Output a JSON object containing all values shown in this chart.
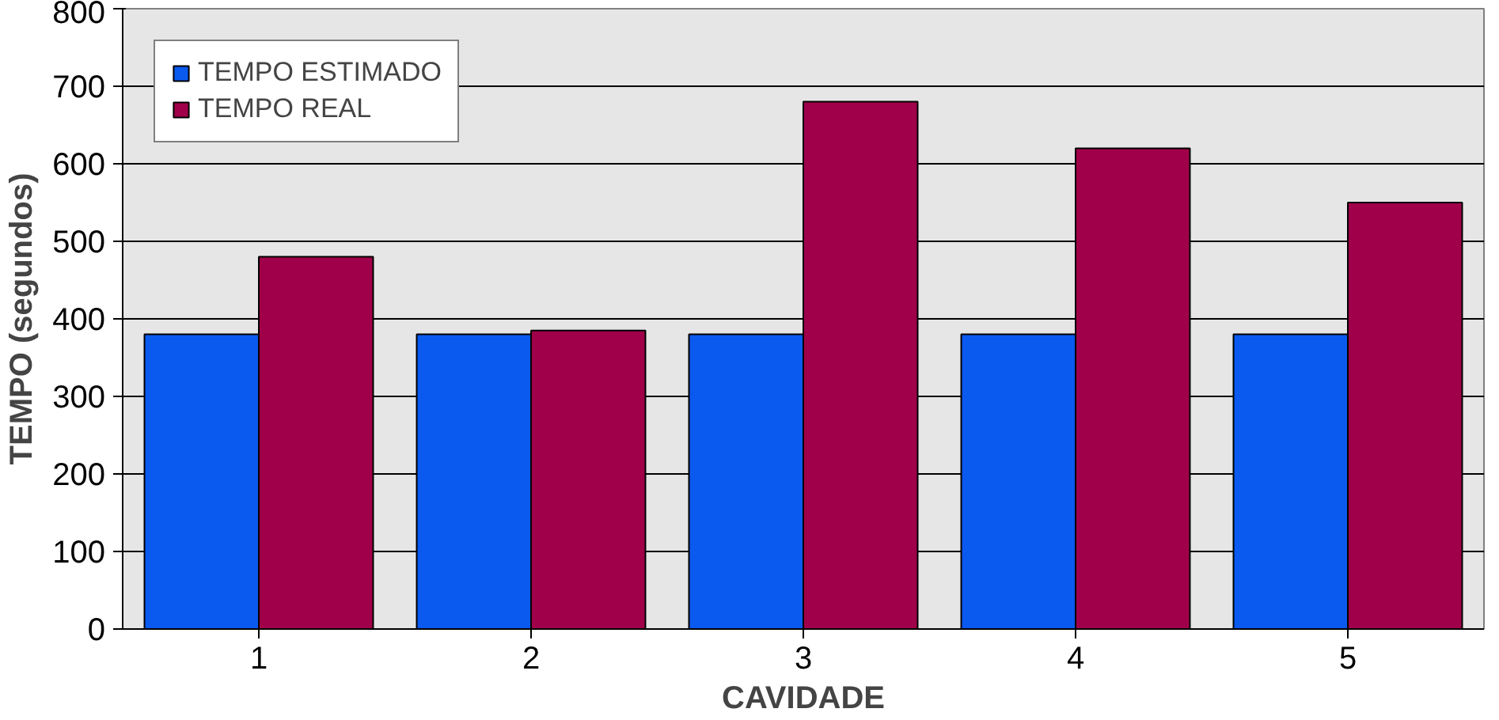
{
  "chart_data": {
    "type": "bar",
    "xlabel": "CAVIDADE",
    "ylabel": "TEMPO (segundos)",
    "categories": [
      "1",
      "2",
      "3",
      "4",
      "5"
    ],
    "series": [
      {
        "name": "TEMPO ESTIMADO",
        "color": "#0a5af0",
        "values": [
          380,
          380,
          380,
          380,
          380
        ]
      },
      {
        "name": "TEMPO REAL",
        "color": "#a0004a",
        "values": [
          480,
          385,
          680,
          620,
          550
        ]
      }
    ],
    "ylim": [
      0,
      800
    ],
    "yticks": [
      0,
      100,
      200,
      300,
      400,
      500,
      600,
      700,
      800
    ],
    "grid": "y",
    "legend": "top left"
  }
}
